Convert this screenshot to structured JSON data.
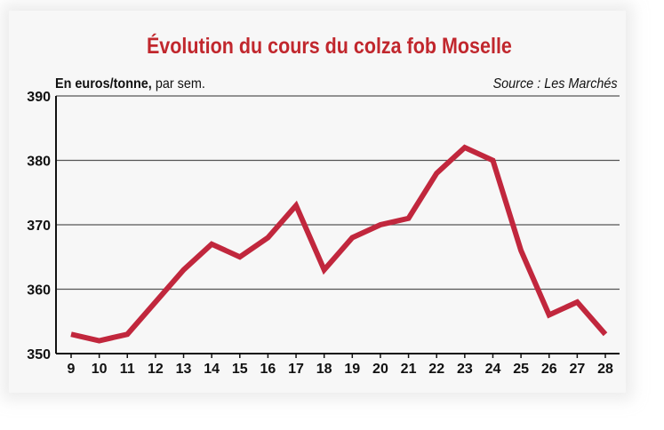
{
  "chart_data": {
    "type": "line",
    "title": "Évolution du cours du colza fob Moselle",
    "unit_label_bold": "En euros/tonne,",
    "unit_label_rest": " par sem.",
    "source": "Source : Les Marchés",
    "x": [
      9,
      10,
      11,
      12,
      13,
      14,
      15,
      16,
      17,
      18,
      19,
      20,
      21,
      22,
      23,
      24,
      25,
      26,
      27,
      28
    ],
    "y": [
      353,
      352,
      353,
      358,
      363,
      367,
      365,
      368,
      373,
      363,
      368,
      370,
      371,
      378,
      382,
      380,
      366,
      356,
      358,
      353
    ],
    "ylim": [
      350,
      390
    ],
    "yticks": [
      350,
      360,
      370,
      380,
      390
    ],
    "grid": true,
    "line_color": "#c1273d",
    "grid_color": "#555555"
  }
}
